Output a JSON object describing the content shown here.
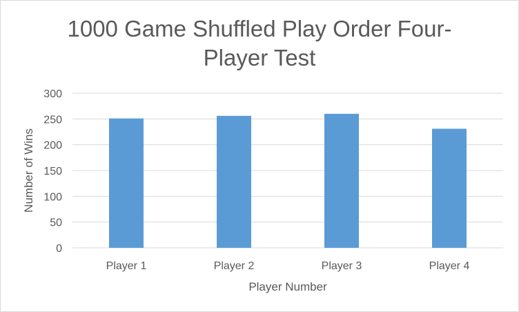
{
  "chart_data": {
    "type": "bar",
    "title_lines": [
      "1000 Game Shuffled Play Order Four-",
      "Player Test"
    ],
    "categories": [
      "Player 1",
      "Player 2",
      "Player 3",
      "Player 4"
    ],
    "values": [
      251,
      256,
      260,
      231
    ],
    "xlabel": "Player Number",
    "ylabel": "Number of Wins",
    "ylim": [
      0,
      300
    ],
    "yticks": [
      0,
      50,
      100,
      150,
      200,
      250,
      300
    ],
    "grid": true,
    "legend": "none",
    "bar_color": "#5b9bd5",
    "grid_color": "#d9d9d9",
    "text_color": "#595959"
  }
}
